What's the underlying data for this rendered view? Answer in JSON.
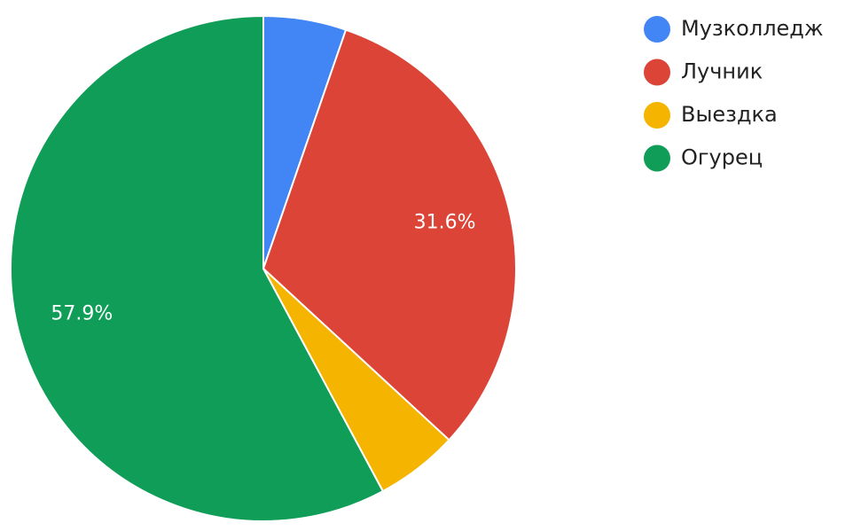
{
  "chart_data": {
    "type": "pie",
    "categories": [
      "Музколледж",
      "Лучник",
      "Выездка",
      "Огурец"
    ],
    "values": [
      5.3,
      31.6,
      5.3,
      57.9
    ],
    "value_labels": [
      null,
      "31.6%",
      null,
      "57.9%"
    ],
    "colors": [
      "#4285f4",
      "#db4437",
      "#f4b400",
      "#0f9d58"
    ],
    "legend": "right"
  }
}
